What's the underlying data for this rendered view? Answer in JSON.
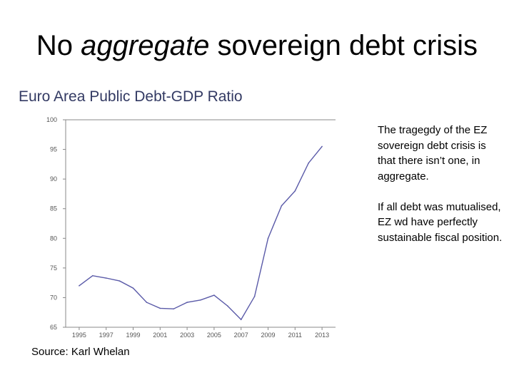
{
  "slide": {
    "title_before": "No ",
    "title_emphasis": "aggregate",
    "title_after": " sovereign debt crisis"
  },
  "side_text": {
    "paragraph1": "The tragegdy of the EZ sovereign debt crisis is that there isn’t one, in aggregate.",
    "paragraph2": "If all debt was mutualised, EZ wd have perfectly sustainable fiscal position."
  },
  "source": "Source:  Karl Whelan",
  "colors": {
    "line": "#5a5aa8",
    "axis": "#888888",
    "title": "#333a63",
    "tick_text": "#555555"
  },
  "chart_data": {
    "type": "line",
    "title": "Euro Area Public Debt-GDP Ratio",
    "xlabel": "",
    "ylabel": "",
    "xlim": [
      1994,
      2014
    ],
    "ylim": [
      65,
      100
    ],
    "yticks": [
      65,
      70,
      75,
      80,
      85,
      90,
      95,
      100
    ],
    "xticks": [
      1995,
      1997,
      1999,
      2001,
      2003,
      2005,
      2007,
      2009,
      2011,
      2013
    ],
    "grid": false,
    "series": [
      {
        "x": [
          1995,
          1996,
          1997,
          1998,
          1999,
          2000,
          2001,
          2002,
          2003,
          2004,
          2005,
          2006,
          2007,
          2008,
          2009,
          2010,
          2011,
          2012,
          2013
        ],
        "values": [
          72.0,
          73.7,
          73.3,
          72.8,
          71.6,
          69.2,
          68.2,
          68.1,
          69.2,
          69.6,
          70.4,
          68.6,
          66.3,
          70.2,
          80.0,
          85.5,
          88.0,
          92.7,
          95.5
        ]
      }
    ]
  }
}
